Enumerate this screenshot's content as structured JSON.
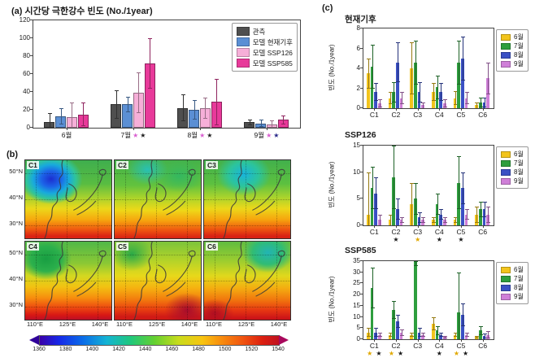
{
  "panel_labels": {
    "b": "(b)",
    "c": "(c)"
  },
  "chart_data": [
    {
      "id": "panel-a",
      "type": "bar",
      "title": "(a) 시간당 극한강수 빈도 (No./1year)",
      "categories": [
        "6월",
        "7월",
        "8월",
        "9월"
      ],
      "series": [
        {
          "name": "관측",
          "color": "#4f4f4f",
          "values": [
            6,
            26,
            22,
            6
          ],
          "errors": [
            10,
            16,
            15,
            3
          ]
        },
        {
          "name": "모델 현재기후",
          "color": "#5b8fd4",
          "values": [
            13,
            26,
            20,
            5
          ],
          "errors": [
            9,
            9,
            11,
            4
          ]
        },
        {
          "name": "모델 SSP126",
          "color": "#f6afd8",
          "values": [
            12,
            39,
            22,
            4
          ],
          "errors": [
            16,
            23,
            12,
            4
          ]
        },
        {
          "name": "모델 SSP585",
          "color": "#e83a9a",
          "values": [
            15,
            72,
            29,
            9
          ],
          "errors": [
            13,
            28,
            26,
            5
          ]
        }
      ],
      "ylim": [
        0,
        120
      ],
      "yticks": [
        0,
        20,
        40,
        60,
        80,
        100,
        120
      ],
      "legend_position": "top-right",
      "stars": [
        {
          "category": "7월",
          "colors": [
            "#d95fd0",
            "#1f1f1f"
          ]
        },
        {
          "category": "8월",
          "colors": [
            "#d95fd0",
            "#1f1f1f"
          ]
        },
        {
          "category": "9월",
          "colors": [
            "#d95fd0",
            "#2a2a8a"
          ]
        }
      ]
    },
    {
      "id": "panel-c-current",
      "type": "bar",
      "title": "현재기후",
      "ylabel": "빈도 (No./1year)",
      "categories": [
        "C1",
        "C2",
        "C3",
        "C4",
        "C5",
        "C6"
      ],
      "series": [
        {
          "name": "6월",
          "color": "#f2c41c",
          "values": [
            3.5,
            1.0,
            4.0,
            1.6,
            1.0,
            0.3
          ],
          "errors": [
            1.5,
            0.6,
            2.6,
            0.9,
            0.7,
            0.3
          ]
        },
        {
          "name": "7월",
          "color": "#2e9e3e",
          "values": [
            4.2,
            1.6,
            4.6,
            2.1,
            4.6,
            0.6
          ],
          "errors": [
            2.2,
            1.0,
            2.2,
            1.2,
            2.2,
            0.5
          ]
        },
        {
          "name": "8월",
          "color": "#3a50c4",
          "values": [
            1.6,
            4.6,
            1.6,
            1.6,
            5.0,
            0.6
          ],
          "errors": [
            0.9,
            2.0,
            1.0,
            0.9,
            2.2,
            0.5
          ]
        },
        {
          "name": "9월",
          "color": "#cf7fd8",
          "values": [
            0.5,
            1.0,
            0.3,
            0.5,
            1.0,
            3.0
          ],
          "errors": [
            0.4,
            0.6,
            0.3,
            0.4,
            0.6,
            1.6
          ]
        }
      ],
      "ylim": [
        0,
        8
      ],
      "yticks": [
        0,
        2,
        4,
        6,
        8
      ],
      "legend_position": "right",
      "stars": []
    },
    {
      "id": "panel-c-ssp126",
      "type": "bar",
      "title": "SSP126",
      "ylabel": "빈도 (No./1year)",
      "categories": [
        "C1",
        "C2",
        "C3",
        "C4",
        "C5",
        "C6"
      ],
      "series": [
        {
          "name": "6월",
          "color": "#f2c41c",
          "values": [
            2,
            1,
            4,
            1,
            1,
            2
          ],
          "errors": [
            8,
            1,
            4,
            0.5,
            0.5,
            1.5
          ]
        },
        {
          "name": "7월",
          "color": "#2e9e3e",
          "values": [
            7,
            9,
            5,
            4,
            8,
            3
          ],
          "errors": [
            4,
            6,
            3,
            2,
            5,
            1.5
          ]
        },
        {
          "name": "8월",
          "color": "#3a50c4",
          "values": [
            6,
            3,
            1.5,
            2,
            7,
            3
          ],
          "errors": [
            3,
            2,
            1,
            1,
            3,
            1.5
          ]
        },
        {
          "name": "9월",
          "color": "#cf7fd8",
          "values": [
            1,
            1,
            1,
            1,
            2,
            2
          ],
          "errors": [
            1,
            0.5,
            0.5,
            0.5,
            1,
            1.5
          ]
        }
      ],
      "ylim": [
        0,
        15
      ],
      "yticks": [
        0,
        5,
        10,
        15
      ],
      "legend_position": "right",
      "stars": [
        {
          "category": "C2",
          "colors": [
            "#1a1a1a"
          ]
        },
        {
          "category": "C3",
          "colors": [
            "#e0a800"
          ]
        },
        {
          "category": "C4",
          "colors": [
            "#1a1a1a"
          ]
        },
        {
          "category": "C5",
          "colors": [
            "#1a1a1a"
          ]
        }
      ]
    },
    {
      "id": "panel-c-ssp585",
      "type": "bar",
      "title": "SSP585",
      "ylabel": "빈도 (No./1year)",
      "categories": [
        "C1",
        "C2",
        "C3",
        "C4",
        "C5",
        "C6"
      ],
      "series": [
        {
          "name": "6월",
          "color": "#f2c41c",
          "values": [
            3,
            2,
            2,
            7,
            2,
            1
          ],
          "errors": [
            2,
            1,
            1,
            3,
            1,
            0.5
          ]
        },
        {
          "name": "7월",
          "color": "#2e9e3e",
          "values": [
            23,
            13,
            35,
            4,
            12,
            4
          ],
          "errors": [
            9,
            4,
            2,
            2,
            18,
            2
          ]
        },
        {
          "name": "8월",
          "color": "#3a50c4",
          "values": [
            3,
            8,
            3,
            2,
            11,
            1.5
          ],
          "errors": [
            2,
            3,
            2,
            1,
            5,
            1
          ]
        },
        {
          "name": "9월",
          "color": "#cf7fd8",
          "values": [
            2,
            3,
            2,
            1,
            2,
            2
          ],
          "errors": [
            1,
            1.5,
            1,
            0.5,
            1,
            1.5
          ]
        }
      ],
      "ylim": [
        0,
        35
      ],
      "yticks": [
        0,
        5,
        10,
        15,
        20,
        25,
        30,
        35
      ],
      "legend_position": "right",
      "stars": [
        {
          "category": "C1",
          "colors": [
            "#e0a800",
            "#1a1a1a"
          ]
        },
        {
          "category": "C2",
          "colors": [
            "#e0a800",
            "#1a1a1a"
          ]
        },
        {
          "category": "C4",
          "colors": [
            "#1a1a1a"
          ]
        },
        {
          "category": "C5",
          "colors": [
            "#e0a800",
            "#1a1a1a"
          ]
        }
      ]
    },
    {
      "id": "panel-b-maps",
      "type": "heatmap",
      "title": "",
      "maps": [
        "C1",
        "C2",
        "C3",
        "C4",
        "C5",
        "C6"
      ],
      "lat_ticks": [
        "50°N",
        "40°N",
        "30°N"
      ],
      "lon_ticks": [
        "110°E",
        "125°E",
        "140°E"
      ],
      "colorbar": {
        "min": 1360,
        "max": 1540,
        "ticks": [
          1360,
          1380,
          1400,
          1420,
          1440,
          1460,
          1480,
          1500,
          1520,
          1540
        ]
      }
    }
  ]
}
